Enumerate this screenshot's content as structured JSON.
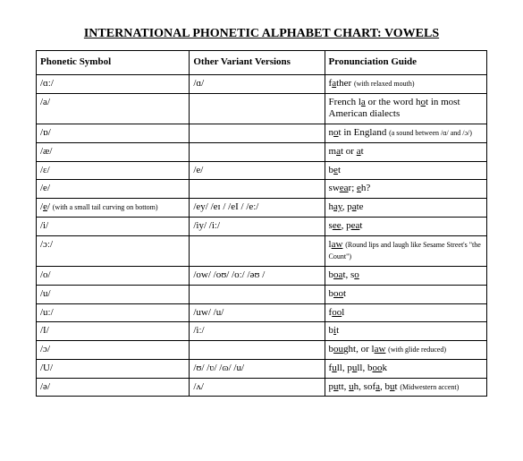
{
  "title": "INTERNATIONAL PHONETIC ALPHABET CHART: VOWELS",
  "headers": {
    "c1": "Phonetic Symbol",
    "c2": "Other Variant Versions",
    "c3": "Pronunciation Guide"
  },
  "rows": [
    {
      "sym": "/ɑː/",
      "var": "/ɑ/",
      "guide": "f<span class='u'>a</span>ther <span class='small'>(with relaxed mouth)</span>"
    },
    {
      "sym": "/a/",
      "var": "",
      "guide": "French l<span class='u'>a</span> or the word h<span class='u'>o</span>t in most American dialects"
    },
    {
      "sym": "/ɒ/",
      "var": "",
      "guide": "n<span class='u'>o</span>t in England <span class='small'>(a sound between /ɑ/ and /ɔ/)</span>"
    },
    {
      "sym": "/æ/",
      "var": "",
      "guide": "m<span class='u'>a</span>t or <span class='u'>a</span>t"
    },
    {
      "sym": "/ɛ/",
      "var": "/e/",
      "guide": "b<span class='u'>e</span>t"
    },
    {
      "sym": "/e/",
      "var": "",
      "guide": "sw<span class='u'>ea</span>r; <span class='u'>e</span>h?"
    },
    {
      "sym": "/<span class='u'>e</span>/ <span class='small'>(with a small tail curving on bottom)</span>",
      "var": "/ey/ /eɪ / /eI / /eː/",
      "guide": "h<span class='u'>ay</span>, p<span class='u'>a</span>te"
    },
    {
      "sym": "/i/",
      "var": "/iy/ /iː/",
      "guide": "s<span class='u'>ee</span>, p<span class='u'>ea</span>t"
    },
    {
      "sym": "/ɔː/",
      "var": "",
      "guide": "l<span class='u'>aw</span> <span class='small'>(Round lips and laugh like Sesame Street's \"the Count\")</span>"
    },
    {
      "sym": "/o/",
      "var": "/ow/ /oʊ/ /oː/ /əʊ /",
      "guide": "b<span class='u'>oa</span>t, s<span class='u'>o</span>"
    },
    {
      "sym": "/u/",
      "var": "",
      "guide": "b<span class='u'>oo</span>t"
    },
    {
      "sym": "/uː/",
      "var": "/uw/ /u/",
      "guide": "f<span class='u'>oo</span>l"
    },
    {
      "sym": "/I/",
      "var": "/iː/",
      "guide": "b<span class='u'>i</span>t"
    },
    {
      "sym": "/ɔ/",
      "var": "",
      "guide": "b<span class='u'>ou</span>ght, or l<span class='u'>aw</span> <span class='small'>(with glide reduced)</span>"
    },
    {
      "sym": "/U/",
      "var": "/ʊ/ /ʋ/ /ɷ/ /u/",
      "guide": "f<span class='u'>u</span>ll, p<span class='u'>u</span>ll, b<span class='u'>oo</span>k"
    },
    {
      "sym": "/ə/",
      "var": "/ʌ/",
      "guide": "p<span class='u'>u</span>tt, <span class='u'>u</span>h, sof<span class='u'>a</span>, b<span class='u'>u</span>t <span class='small'>(Midwestern accent)</span>"
    }
  ]
}
